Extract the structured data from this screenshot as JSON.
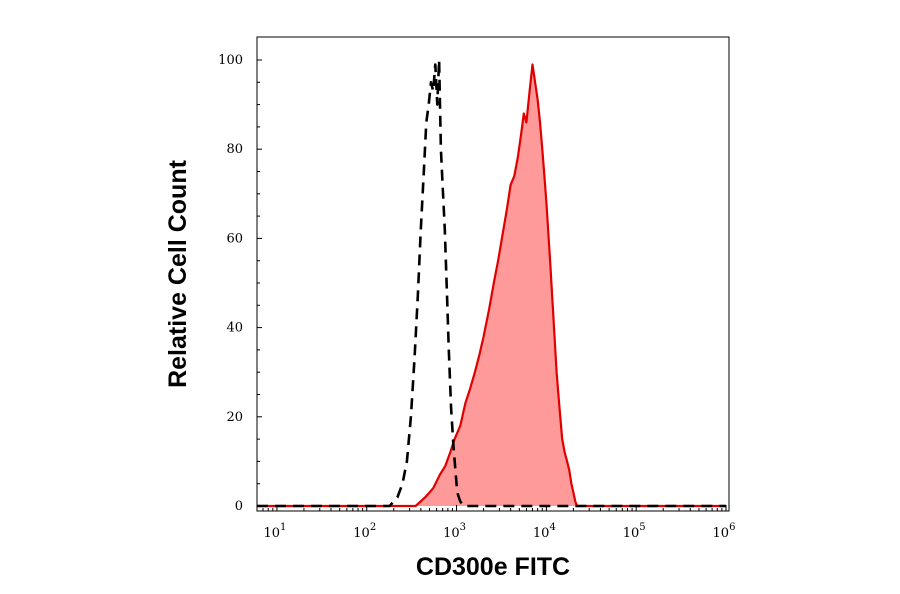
{
  "chart_data": {
    "type": "area",
    "xlabel": "CD300e FITC",
    "ylabel": "Relative Cell Count",
    "x_scale": "log",
    "xlim": [
      6,
      1000000
    ],
    "ylim": [
      0,
      100
    ],
    "x_ticks": [
      {
        "value": 10,
        "base": "10",
        "exp": "1"
      },
      {
        "value": 100,
        "base": "10",
        "exp": "2"
      },
      {
        "value": 1000,
        "base": "10",
        "exp": "3"
      },
      {
        "value": 10000,
        "base": "10",
        "exp": "4"
      },
      {
        "value": 100000,
        "base": "10",
        "exp": "5"
      },
      {
        "value": 1000000,
        "base": "10",
        "exp": "6"
      }
    ],
    "y_ticks": [
      "0",
      "20",
      "40",
      "60",
      "80",
      "100"
    ],
    "grid": false,
    "legend": "none",
    "series": [
      {
        "style": "dashed",
        "color": "#000000",
        "x": [
          6,
          180,
          220,
          250,
          280,
          310,
          340,
          370,
          400,
          430,
          460,
          490,
          520,
          550,
          580,
          610,
          640,
          670,
          700,
          740,
          780,
          820,
          870,
          920,
          970,
          1020,
          1100,
          1200,
          1400,
          1000000
        ],
        "y": [
          0,
          0,
          2,
          5,
          10,
          20,
          33,
          47,
          62,
          74,
          86,
          90,
          95,
          93,
          99,
          90,
          100,
          80,
          72,
          62,
          48,
          35,
          22,
          14,
          8,
          3,
          1,
          0,
          0,
          0
        ]
      },
      {
        "style": "filled",
        "color": "#e00000",
        "fill": "#ff9a9a",
        "x": [
          6,
          350,
          450,
          550,
          650,
          750,
          850,
          950,
          1100,
          1250,
          1400,
          1600,
          1800,
          2000,
          2300,
          2600,
          2900,
          3200,
          3600,
          4000,
          4400,
          4800,
          5200,
          5600,
          6000,
          6500,
          7000,
          7500,
          8000,
          8500,
          9000,
          9500,
          10000,
          11000,
          12000,
          13000,
          14000,
          15000,
          16000,
          17000,
          18000,
          19000,
          20000,
          21000,
          22000,
          25000,
          1000000
        ],
        "y": [
          0,
          0,
          2,
          4,
          7,
          9,
          12,
          15,
          18,
          23,
          26,
          30,
          34,
          38,
          44,
          50,
          55,
          60,
          66,
          72,
          74,
          78,
          83,
          88,
          86,
          93,
          99,
          95,
          91,
          86,
          80,
          74,
          68,
          55,
          42,
          30,
          22,
          15,
          12,
          10,
          8,
          5,
          3,
          1,
          0,
          0,
          0
        ]
      }
    ]
  }
}
